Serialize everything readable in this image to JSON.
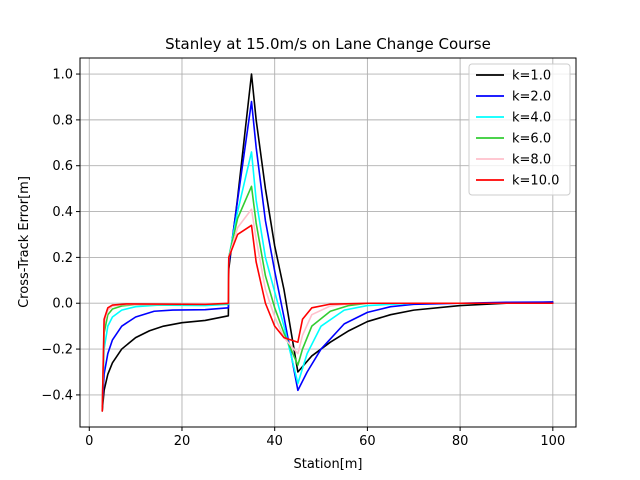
{
  "chart_data": {
    "type": "line",
    "title": "Stanley at 15.0m/s on Lane Change Course",
    "xlabel": "Station[m]",
    "ylabel": "Cross-Track Error[m]",
    "xlim": [
      -2,
      105
    ],
    "ylim": [
      -0.54,
      1.07
    ],
    "xticks": [
      0,
      20,
      40,
      60,
      80,
      100
    ],
    "xtick_labels": [
      "0",
      "20",
      "40",
      "60",
      "80",
      "100"
    ],
    "yticks": [
      -0.4,
      -0.2,
      0.0,
      0.2,
      0.4,
      0.6,
      0.8,
      1.0
    ],
    "ytick_labels": [
      "−0.4",
      "−0.2",
      "0.0",
      "0.2",
      "0.4",
      "0.6",
      "0.8",
      "1.0"
    ],
    "grid": true,
    "legend_position": "top-right",
    "series": [
      {
        "name": "k=1.0",
        "color": "#000000",
        "points": [
          [
            2.8,
            -0.47
          ],
          [
            3.2,
            -0.38
          ],
          [
            4,
            -0.31
          ],
          [
            5,
            -0.26
          ],
          [
            7,
            -0.2
          ],
          [
            10,
            -0.15
          ],
          [
            13,
            -0.12
          ],
          [
            16,
            -0.1
          ],
          [
            20,
            -0.085
          ],
          [
            25,
            -0.075
          ],
          [
            30,
            -0.055
          ],
          [
            30.1,
            0.15
          ],
          [
            32,
            0.46
          ],
          [
            35,
            1.0
          ],
          [
            36,
            0.8
          ],
          [
            38,
            0.5
          ],
          [
            40,
            0.25
          ],
          [
            42,
            0.06
          ],
          [
            45,
            -0.3
          ],
          [
            48,
            -0.23
          ],
          [
            52,
            -0.17
          ],
          [
            56,
            -0.12
          ],
          [
            60,
            -0.08
          ],
          [
            65,
            -0.05
          ],
          [
            70,
            -0.03
          ],
          [
            80,
            -0.01
          ],
          [
            90,
            0.0
          ],
          [
            100,
            0.005
          ]
        ]
      },
      {
        "name": "k=2.0",
        "color": "#0000ff",
        "points": [
          [
            2.8,
            -0.45
          ],
          [
            3.2,
            -0.31
          ],
          [
            4,
            -0.22
          ],
          [
            5,
            -0.16
          ],
          [
            7,
            -0.1
          ],
          [
            10,
            -0.06
          ],
          [
            14,
            -0.035
          ],
          [
            18,
            -0.03
          ],
          [
            25,
            -0.028
          ],
          [
            30,
            -0.02
          ],
          [
            30.1,
            0.17
          ],
          [
            32,
            0.45
          ],
          [
            35,
            0.88
          ],
          [
            36,
            0.68
          ],
          [
            38,
            0.36
          ],
          [
            40,
            0.14
          ],
          [
            42,
            -0.06
          ],
          [
            45,
            -0.38
          ],
          [
            47,
            -0.3
          ],
          [
            50,
            -0.2
          ],
          [
            55,
            -0.09
          ],
          [
            60,
            -0.04
          ],
          [
            65,
            -0.015
          ],
          [
            70,
            -0.005
          ],
          [
            80,
            0.0
          ],
          [
            90,
            0.004
          ],
          [
            100,
            0.005
          ]
        ]
      },
      {
        "name": "k=4.0",
        "color": "#00ffff",
        "points": [
          [
            2.8,
            -0.45
          ],
          [
            3.2,
            -0.2
          ],
          [
            4,
            -0.1
          ],
          [
            5,
            -0.06
          ],
          [
            7,
            -0.03
          ],
          [
            10,
            -0.015
          ],
          [
            15,
            -0.008
          ],
          [
            25,
            -0.01
          ],
          [
            30,
            -0.005
          ],
          [
            30.1,
            0.2
          ],
          [
            32,
            0.4
          ],
          [
            35,
            0.66
          ],
          [
            36,
            0.45
          ],
          [
            38,
            0.2
          ],
          [
            40,
            0.05
          ],
          [
            42,
            -0.1
          ],
          [
            45,
            -0.35
          ],
          [
            47,
            -0.22
          ],
          [
            50,
            -0.1
          ],
          [
            55,
            -0.03
          ],
          [
            60,
            -0.01
          ],
          [
            70,
            0.0
          ],
          [
            100,
            0.0
          ]
        ]
      },
      {
        "name": "k=6.0",
        "color": "#32cd32",
        "points": [
          [
            2.8,
            -0.45
          ],
          [
            3.2,
            -0.13
          ],
          [
            4,
            -0.05
          ],
          [
            5,
            -0.025
          ],
          [
            7,
            -0.012
          ],
          [
            10,
            -0.006
          ],
          [
            25,
            -0.005
          ],
          [
            30,
            -0.002
          ],
          [
            30.1,
            0.2
          ],
          [
            32,
            0.37
          ],
          [
            35,
            0.51
          ],
          [
            36,
            0.35
          ],
          [
            38,
            0.12
          ],
          [
            40,
            -0.02
          ],
          [
            42,
            -0.13
          ],
          [
            45,
            -0.27
          ],
          [
            46,
            -0.2
          ],
          [
            48,
            -0.1
          ],
          [
            52,
            -0.035
          ],
          [
            56,
            -0.01
          ],
          [
            60,
            0.0
          ],
          [
            100,
            0.0
          ]
        ]
      },
      {
        "name": "k=8.0",
        "color": "#ffc0cb",
        "points": [
          [
            2.8,
            -0.46
          ],
          [
            3.2,
            -0.09
          ],
          [
            4,
            -0.03
          ],
          [
            5,
            -0.013
          ],
          [
            7,
            -0.006
          ],
          [
            25,
            -0.003
          ],
          [
            30,
            0.0
          ],
          [
            30.1,
            0.2
          ],
          [
            32,
            0.33
          ],
          [
            35,
            0.41
          ],
          [
            36,
            0.28
          ],
          [
            38,
            0.06
          ],
          [
            40,
            -0.06
          ],
          [
            42,
            -0.15
          ],
          [
            45,
            -0.22
          ],
          [
            46,
            -0.14
          ],
          [
            48,
            -0.05
          ],
          [
            52,
            -0.012
          ],
          [
            56,
            -0.003
          ],
          [
            60,
            0.0
          ],
          [
            100,
            0.0
          ]
        ]
      },
      {
        "name": "k=10.0",
        "color": "#ff0000",
        "points": [
          [
            2.8,
            -0.47
          ],
          [
            3.2,
            -0.07
          ],
          [
            4,
            -0.02
          ],
          [
            5,
            -0.008
          ],
          [
            8,
            -0.003
          ],
          [
            25,
            -0.005
          ],
          [
            30,
            0.0
          ],
          [
            30.1,
            0.2
          ],
          [
            32,
            0.3
          ],
          [
            35,
            0.34
          ],
          [
            36,
            0.18
          ],
          [
            38,
            0.0
          ],
          [
            40,
            -0.1
          ],
          [
            42,
            -0.15
          ],
          [
            45,
            -0.17
          ],
          [
            46,
            -0.07
          ],
          [
            48,
            -0.02
          ],
          [
            52,
            -0.004
          ],
          [
            60,
            0.0
          ],
          [
            100,
            0.0
          ]
        ]
      }
    ]
  }
}
